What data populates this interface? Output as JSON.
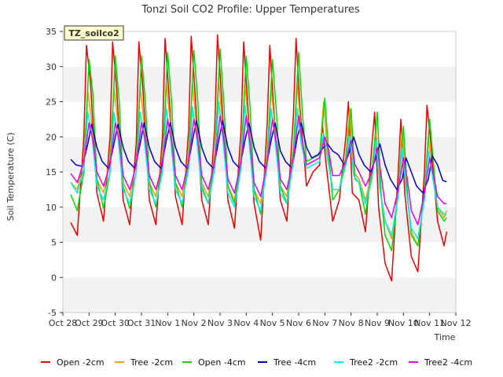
{
  "chart_data": {
    "type": "line",
    "title": "Tonzi Soil CO2 Profile: Upper Temperatures",
    "xlabel": "Time",
    "ylabel": "Soil Temperature (C)",
    "site_label": "TZ_soilco2",
    "xlim": [
      0,
      15
    ],
    "ylim": [
      -5,
      35
    ],
    "x_ticks": [
      0,
      1,
      2,
      3,
      4,
      5,
      6,
      7,
      8,
      9,
      10,
      11,
      12,
      13,
      14,
      15
    ],
    "x_tick_labels": [
      "Oct 28",
      "Oct 29",
      "Oct 30",
      "Oct 31",
      "Nov 1",
      "Nov 2",
      "Nov 3",
      "Nov 4",
      "Nov 5",
      "Nov 6",
      "Nov 7",
      "Nov 8",
      "Nov 9",
      "Nov 10",
      "Nov 11",
      "Nov 12"
    ],
    "y_ticks": [
      -5,
      0,
      5,
      10,
      15,
      20,
      25,
      30,
      35
    ],
    "grid": "horizontal bands",
    "legend_position": "bottom",
    "series": [
      {
        "name": "Open -2cm",
        "color": "#ee0000",
        "x": [
          0.3,
          0.55,
          0.8,
          0.9,
          1.05,
          1.3,
          1.55,
          1.8,
          1.9,
          2.05,
          2.3,
          2.55,
          2.8,
          2.9,
          3.05,
          3.3,
          3.55,
          3.8,
          3.9,
          4.05,
          4.3,
          4.55,
          4.8,
          4.9,
          5.05,
          5.3,
          5.55,
          5.8,
          5.9,
          6.05,
          6.3,
          6.55,
          6.8,
          6.9,
          7.05,
          7.3,
          7.55,
          7.8,
          7.9,
          8.05,
          8.3,
          8.55,
          8.8,
          8.9,
          9.05,
          9.3,
          9.55,
          9.8,
          9.9,
          10.05,
          10.3,
          10.55,
          10.8,
          10.9,
          11.05,
          11.3,
          11.55,
          11.8,
          11.9,
          12.05,
          12.3,
          12.55,
          12.8,
          12.9,
          13.05,
          13.3,
          13.55,
          13.8,
          13.9,
          14.05,
          14.3,
          14.55,
          14.65
        ],
        "y": [
          7.8,
          6.0,
          20.0,
          33.0,
          28.0,
          12.0,
          8.0,
          20.0,
          33.5,
          27.0,
          11.0,
          7.5,
          19.0,
          33.5,
          27.0,
          11.0,
          7.5,
          20.0,
          34.0,
          26.0,
          11.5,
          7.5,
          21.0,
          34.3,
          26.0,
          11.0,
          7.5,
          21.5,
          34.5,
          26.0,
          11.0,
          7.0,
          21.0,
          33.5,
          25.0,
          10.5,
          5.3,
          22.0,
          33.0,
          24.0,
          11.0,
          8.0,
          23.0,
          34.0,
          24.0,
          13.0,
          15.0,
          16.0,
          22.0,
          16.0,
          8.0,
          11.0,
          20.0,
          25.0,
          12.0,
          11.0,
          6.5,
          19.0,
          23.5,
          10.0,
          2.0,
          -0.5,
          15.0,
          22.5,
          12.0,
          3.0,
          0.8,
          15.0,
          24.5,
          19.0,
          8.0,
          4.5,
          6.5
        ]
      },
      {
        "name": "Tree -2cm",
        "color": "#f0a000",
        "x": [
          0.3,
          0.55,
          0.8,
          0.95,
          1.1,
          1.3,
          1.55,
          1.8,
          1.95,
          2.1,
          2.3,
          2.55,
          2.8,
          2.95,
          3.1,
          3.3,
          3.55,
          3.8,
          3.95,
          4.1,
          4.3,
          4.55,
          4.8,
          4.95,
          5.1,
          5.3,
          5.55,
          5.8,
          5.95,
          6.1,
          6.3,
          6.55,
          6.8,
          6.95,
          7.1,
          7.3,
          7.55,
          7.8,
          7.95,
          8.1,
          8.3,
          8.55,
          8.8,
          8.95,
          9.1,
          9.3,
          9.55,
          9.8,
          9.95,
          10.1,
          10.3,
          10.55,
          10.8,
          10.95,
          11.1,
          11.3,
          11.55,
          11.8,
          11.95,
          12.1,
          12.3,
          12.55,
          12.8,
          12.95,
          13.1,
          13.3,
          13.55,
          13.8,
          13.95,
          14.1,
          14.3,
          14.55,
          14.65
        ],
        "y": [
          13.5,
          12.5,
          17.0,
          26.5,
          22.0,
          14.0,
          12.0,
          17.0,
          27.0,
          22.0,
          13.5,
          11.5,
          16.5,
          27.0,
          22.0,
          13.5,
          11.5,
          17.0,
          27.5,
          22.0,
          13.5,
          11.5,
          17.5,
          27.5,
          21.5,
          13.5,
          11.5,
          17.5,
          28.0,
          21.5,
          13.0,
          11.0,
          17.0,
          27.5,
          21.0,
          12.5,
          10.5,
          17.5,
          27.0,
          21.0,
          13.0,
          11.5,
          18.0,
          27.5,
          20.5,
          16.0,
          16.5,
          17.0,
          25.0,
          18.0,
          12.5,
          12.5,
          17.0,
          24.0,
          15.0,
          14.0,
          11.0,
          15.0,
          21.0,
          13.0,
          8.0,
          5.5,
          12.0,
          21.0,
          13.0,
          6.5,
          4.5,
          12.0,
          20.0,
          15.0,
          10.0,
          8.5,
          9.5
        ]
      },
      {
        "name": "Open -4cm",
        "color": "#00dd00",
        "x": [
          0.3,
          0.55,
          0.8,
          1.0,
          1.15,
          1.3,
          1.55,
          1.8,
          2.0,
          2.15,
          2.3,
          2.55,
          2.8,
          3.0,
          3.15,
          3.3,
          3.55,
          3.8,
          4.0,
          4.15,
          4.3,
          4.55,
          4.8,
          5.0,
          5.15,
          5.3,
          5.55,
          5.8,
          6.0,
          6.15,
          6.3,
          6.55,
          6.8,
          7.0,
          7.15,
          7.3,
          7.55,
          7.8,
          8.0,
          8.15,
          8.3,
          8.55,
          8.8,
          9.0,
          9.15,
          9.3,
          9.55,
          9.8,
          10.0,
          10.15,
          10.3,
          10.55,
          10.8,
          11.0,
          11.15,
          11.3,
          11.55,
          11.8,
          12.0,
          12.15,
          12.3,
          12.55,
          12.8,
          13.0,
          13.15,
          13.3,
          13.55,
          13.8,
          14.0,
          14.15,
          14.3,
          14.55,
          14.65
        ],
        "y": [
          11.8,
          9.5,
          15.0,
          31.0,
          26.0,
          14.0,
          9.8,
          15.0,
          31.5,
          25.0,
          13.0,
          9.8,
          15.0,
          31.5,
          25.0,
          13.5,
          10.0,
          16.0,
          32.0,
          25.0,
          13.5,
          10.0,
          16.5,
          32.3,
          25.0,
          13.0,
          10.5,
          17.0,
          32.5,
          24.5,
          13.0,
          10.5,
          16.5,
          31.5,
          24.0,
          12.5,
          9.0,
          17.0,
          31.0,
          23.5,
          13.0,
          10.5,
          18.0,
          32.0,
          23.0,
          16.5,
          17.0,
          17.5,
          25.5,
          17.5,
          11.0,
          12.5,
          17.0,
          24.0,
          14.0,
          13.5,
          9.0,
          15.0,
          23.5,
          11.5,
          6.0,
          3.8,
          12.0,
          21.5,
          12.0,
          6.0,
          4.5,
          12.0,
          22.5,
          16.0,
          9.5,
          8.0,
          8.5
        ]
      },
      {
        "name": "Tree -4cm",
        "color": "#0000cc",
        "x": [
          0.3,
          0.5,
          0.75,
          0.95,
          1.1,
          1.3,
          1.5,
          1.75,
          1.95,
          2.1,
          2.3,
          2.5,
          2.75,
          2.95,
          3.1,
          3.3,
          3.5,
          3.75,
          3.95,
          4.1,
          4.3,
          4.5,
          4.75,
          4.95,
          5.1,
          5.3,
          5.5,
          5.75,
          5.95,
          6.1,
          6.3,
          6.5,
          6.75,
          6.95,
          7.1,
          7.3,
          7.5,
          7.75,
          7.95,
          8.1,
          8.3,
          8.5,
          8.75,
          8.95,
          9.1,
          9.3,
          9.5,
          9.75,
          9.95,
          10.1,
          10.3,
          10.5,
          10.75,
          10.95,
          11.1,
          11.3,
          11.5,
          11.75,
          11.95,
          12.1,
          12.3,
          12.5,
          12.75,
          12.95,
          13.1,
          13.3,
          13.5,
          13.75,
          13.95,
          14.1,
          14.3,
          14.5,
          14.65
        ],
        "y": [
          16.8,
          16.0,
          15.8,
          19.0,
          21.8,
          18.5,
          16.5,
          15.5,
          19.0,
          21.8,
          18.5,
          16.5,
          15.5,
          19.0,
          22.0,
          18.5,
          16.5,
          15.5,
          19.5,
          22.0,
          18.5,
          16.5,
          15.5,
          19.5,
          22.3,
          18.5,
          16.5,
          15.5,
          19.5,
          22.3,
          18.5,
          16.5,
          15.5,
          19.5,
          22.0,
          18.5,
          16.5,
          15.5,
          19.5,
          22.0,
          18.0,
          16.5,
          15.5,
          20.0,
          22.0,
          18.5,
          17.0,
          17.5,
          18.5,
          19.0,
          18.0,
          17.5,
          16.0,
          18.0,
          20.0,
          17.5,
          16.0,
          15.0,
          17.0,
          19.0,
          16.0,
          14.0,
          12.5,
          14.0,
          17.0,
          15.0,
          13.0,
          12.0,
          14.0,
          17.3,
          16.0,
          13.8,
          13.6
        ]
      },
      {
        "name": "Tree2 -2cm",
        "color": "#00eeee",
        "x": [
          0.3,
          0.55,
          0.8,
          0.95,
          1.1,
          1.3,
          1.55,
          1.8,
          1.95,
          2.1,
          2.3,
          2.55,
          2.8,
          2.95,
          3.1,
          3.3,
          3.55,
          3.8,
          3.95,
          4.1,
          4.3,
          4.55,
          4.8,
          4.95,
          5.1,
          5.3,
          5.55,
          5.8,
          5.95,
          6.1,
          6.3,
          6.55,
          6.8,
          6.95,
          7.1,
          7.3,
          7.55,
          7.8,
          7.95,
          8.1,
          8.3,
          8.55,
          8.8,
          8.95,
          9.1,
          9.3,
          9.55,
          9.8,
          9.95,
          10.1,
          10.3,
          10.55,
          10.8,
          10.95,
          11.1,
          11.3,
          11.55,
          11.8,
          11.95,
          12.1,
          12.3,
          12.55,
          12.8,
          12.95,
          13.1,
          13.3,
          13.55,
          13.8,
          13.95,
          14.1,
          14.3,
          14.55,
          14.65
        ],
        "y": [
          13.5,
          12.0,
          15.5,
          23.5,
          20.5,
          13.0,
          11.0,
          15.0,
          23.5,
          20.0,
          12.5,
          10.5,
          15.0,
          23.5,
          20.0,
          12.5,
          10.5,
          15.0,
          24.0,
          20.0,
          12.5,
          10.5,
          15.5,
          24.3,
          20.0,
          12.5,
          10.5,
          15.5,
          25.0,
          20.0,
          12.0,
          10.0,
          15.5,
          24.5,
          19.5,
          11.5,
          9.5,
          16.0,
          24.0,
          19.5,
          12.0,
          10.5,
          16.5,
          24.0,
          19.0,
          15.5,
          16.0,
          16.5,
          20.5,
          17.0,
          12.5,
          12.5,
          16.0,
          20.0,
          14.5,
          13.5,
          10.5,
          14.0,
          19.5,
          12.5,
          8.0,
          6.0,
          11.5,
          18.5,
          12.5,
          7.0,
          5.5,
          11.0,
          18.0,
          14.5,
          10.0,
          9.0,
          9.0
        ]
      },
      {
        "name": "Tree2 -4cm",
        "color": "#ee00ee",
        "x": [
          0.3,
          0.55,
          0.8,
          1.0,
          1.15,
          1.3,
          1.55,
          1.8,
          2.0,
          2.15,
          2.3,
          2.55,
          2.8,
          3.0,
          3.15,
          3.3,
          3.55,
          3.8,
          4.0,
          4.15,
          4.3,
          4.55,
          4.8,
          5.0,
          5.15,
          5.3,
          5.55,
          5.8,
          6.0,
          6.15,
          6.3,
          6.55,
          6.8,
          7.0,
          7.15,
          7.3,
          7.55,
          7.8,
          8.0,
          8.15,
          8.3,
          8.55,
          8.8,
          9.0,
          9.15,
          9.3,
          9.55,
          9.8,
          10.0,
          10.15,
          10.3,
          10.55,
          10.8,
          11.0,
          11.15,
          11.3,
          11.55,
          11.8,
          12.0,
          12.15,
          12.3,
          12.55,
          12.8,
          13.0,
          13.15,
          13.3,
          13.55,
          13.8,
          14.0,
          14.15,
          14.3,
          14.55,
          14.65
        ],
        "y": [
          14.8,
          13.5,
          16.5,
          22.0,
          19.5,
          15.0,
          13.0,
          16.0,
          22.0,
          19.5,
          14.5,
          12.5,
          16.0,
          22.0,
          19.5,
          14.5,
          12.5,
          16.0,
          22.5,
          19.5,
          14.5,
          12.5,
          16.5,
          22.5,
          19.5,
          14.5,
          12.5,
          16.5,
          23.0,
          19.5,
          14.0,
          12.0,
          16.5,
          23.0,
          19.0,
          13.5,
          11.5,
          16.5,
          22.5,
          19.0,
          14.0,
          12.5,
          17.0,
          23.0,
          19.0,
          16.0,
          16.5,
          17.0,
          20.0,
          18.0,
          14.5,
          14.5,
          16.5,
          19.5,
          16.0,
          15.0,
          13.0,
          15.0,
          18.5,
          14.5,
          10.5,
          8.5,
          12.5,
          17.0,
          14.0,
          9.5,
          7.5,
          12.0,
          17.0,
          14.5,
          11.5,
          10.5,
          10.5
        ]
      }
    ]
  }
}
